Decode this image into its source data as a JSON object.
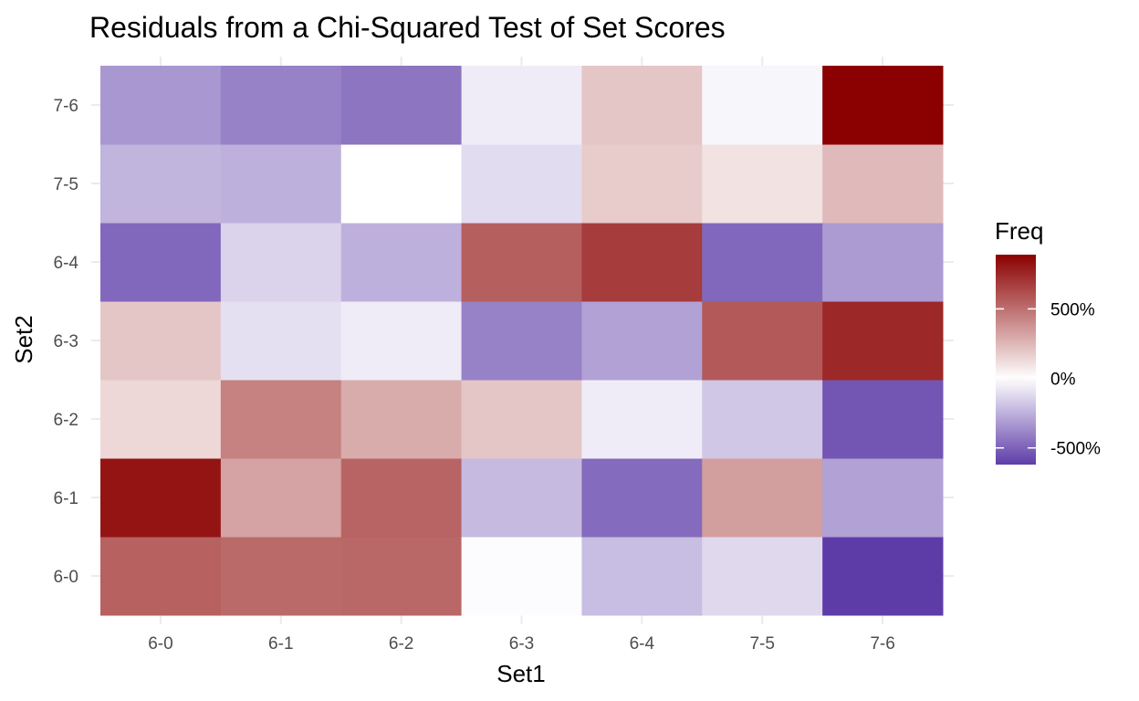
{
  "chart_data": {
    "type": "heatmap",
    "title": "Residuals from a Chi-Squared Test of Set Scores",
    "xlabel": "Set1",
    "ylabel": "Set2",
    "x_categories": [
      "6-0",
      "6-1",
      "6-2",
      "6-3",
      "6-4",
      "7-5",
      "7-6"
    ],
    "y_categories": [
      "6-0",
      "6-1",
      "6-2",
      "6-3",
      "6-4",
      "7-5",
      "7-6"
    ],
    "value_unit": "%",
    "values": [
      [
        550,
        520,
        530,
        -10,
        -210,
        -120,
        -620
      ],
      [
        820,
        320,
        540,
        -220,
        -470,
        340,
        -300
      ],
      [
        140,
        440,
        290,
        200,
        -60,
        -180,
        -540
      ],
      [
        200,
        -100,
        -60,
        -400,
        -300,
        580,
        750
      ],
      [
        -480,
        -140,
        -250,
        560,
        680,
        -480,
        -320
      ],
      [
        -240,
        -250,
        0,
        -110,
        180,
        100,
        240
      ],
      [
        -330,
        -400,
        -440,
        -60,
        200,
        -30,
        890
      ]
    ],
    "legend": {
      "title": "Freq",
      "placement": "right",
      "ticks": [
        "500%",
        "0%",
        "-500%"
      ],
      "tick_values": [
        500,
        0,
        -500
      ],
      "range": [
        -620,
        890
      ]
    },
    "colors": {
      "low": "#5e3ca8",
      "mid": "#ffffff",
      "high": "#8b0000",
      "grid": "#ebebeb"
    },
    "grid": true
  }
}
